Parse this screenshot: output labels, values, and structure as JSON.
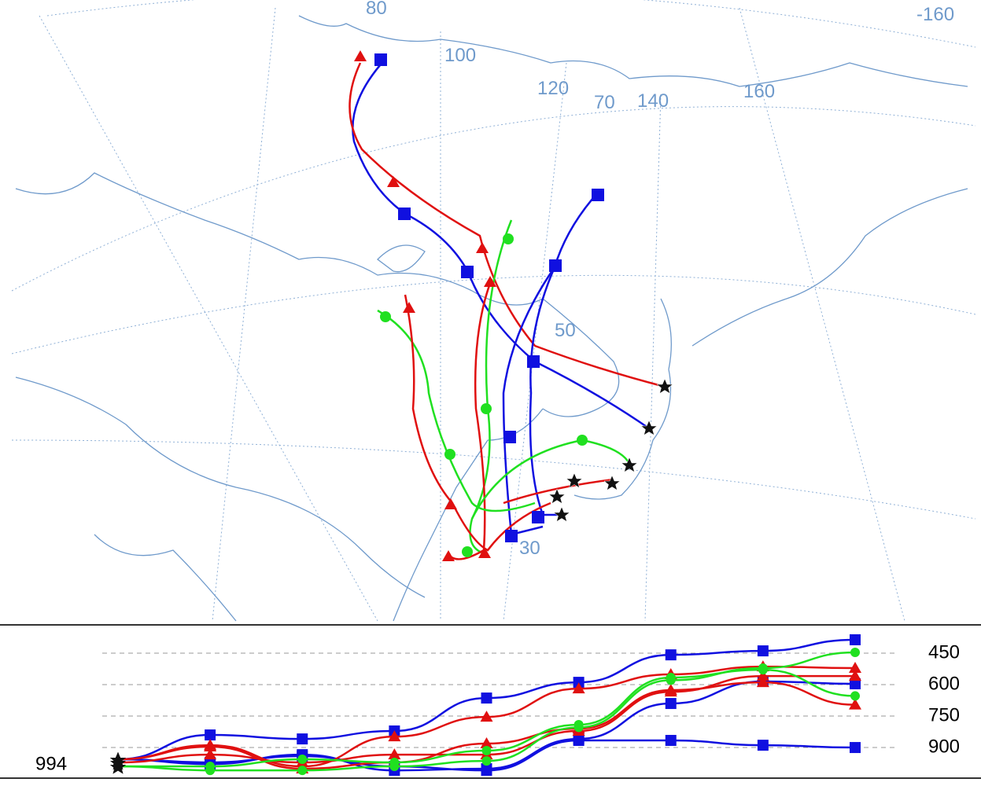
{
  "map": {
    "labels": [
      "80",
      "100",
      "120",
      "70",
      "140",
      "160",
      "-160",
      "50",
      "30"
    ]
  },
  "chart_data": {
    "type": "line",
    "categories": [
      null,
      null,
      null,
      null,
      null,
      null,
      null,
      null,
      null
    ],
    "start_level": 994,
    "ylim": [
      1046,
      315
    ],
    "yticks": [
      450,
      600,
      750,
      900
    ],
    "series": [
      {
        "color": "#1010e0",
        "marker": "square",
        "values": [
          956,
          840,
          859,
          821,
          664,
          589,
          458,
          439,
          386
        ]
      },
      {
        "color": "#1010e0",
        "marker": "square",
        "values": [
          956,
          971,
          941,
          990,
          1009,
          866,
          866,
          889,
          900
        ]
      },
      {
        "color": "#1010e0",
        "marker": "square",
        "values": [
          956,
          979,
          934,
          1009,
          1001,
          859,
          690,
          585,
          596
        ]
      },
      {
        "color": "#e01010",
        "marker": "triangle",
        "values": [
          956,
          889,
          990,
          848,
          754,
          619,
          551,
          514,
          521
        ]
      },
      {
        "color": "#e01010",
        "marker": "triangle",
        "values": [
          956,
          896,
          1001,
          971,
          881,
          810,
          626,
          589,
          696
        ]
      },
      {
        "color": "#e01010",
        "marker": "triangle",
        "values": [
          971,
          934,
          971,
          934,
          934,
          821,
          634,
          559,
          559
        ]
      },
      {
        "color": "#20e020",
        "marker": "circle",
        "values": [
          990,
          1009,
          1009,
          990,
          964,
          804,
          579,
          521,
          446
        ]
      },
      {
        "color": "#20e020",
        "marker": "circle",
        "values": [
          990,
          990,
          956,
          971,
          915,
          791,
          566,
          529,
          654
        ]
      }
    ]
  }
}
